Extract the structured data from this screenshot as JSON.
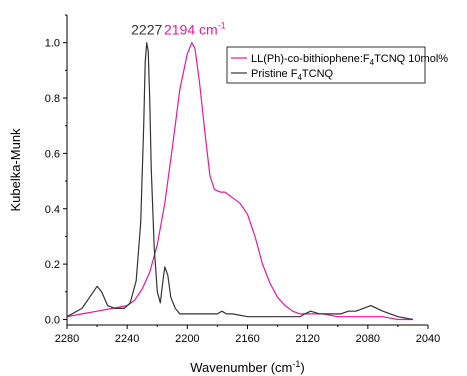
{
  "chart_data": {
    "type": "line",
    "xlabel": "Wavenumber (cm",
    "xlabel_sup": "-1",
    "xlabel_end": ")",
    "ylabel": "Kubelka-Munk",
    "xlim": [
      2280,
      2040
    ],
    "ylim": [
      -0.02,
      1.1
    ],
    "x_ticks": [
      2280,
      2240,
      2200,
      2160,
      2120,
      2080,
      2040
    ],
    "y_ticks": [
      0.0,
      0.2,
      0.4,
      0.6,
      0.8,
      1.0
    ],
    "y_tick_labels": [
      "0.0",
      "0.2",
      "0.4",
      "0.6",
      "0.8",
      "1.0"
    ],
    "legend_position": "top-right",
    "annotations": [
      {
        "text": "2227",
        "sup": "",
        "x": 2227,
        "y": 1.0,
        "color": "#333333"
      },
      {
        "text": "2194 cm",
        "sup": "-1",
        "x": 2195,
        "y": 1.0,
        "color": "#e8189a"
      }
    ],
    "series": [
      {
        "name": "LL(Ph)-co-bithiophene:F",
        "name_sub": "4",
        "name_end": "TCNQ 10mol%",
        "color": "#e8189a",
        "x": [
          2280,
          2270,
          2260,
          2250,
          2240,
          2235,
          2230,
          2225,
          2220,
          2215,
          2210,
          2205,
          2200,
          2197,
          2195,
          2192,
          2188,
          2185,
          2182,
          2178,
          2175,
          2170,
          2165,
          2160,
          2155,
          2150,
          2145,
          2140,
          2135,
          2130,
          2125,
          2120,
          2110,
          2100,
          2090,
          2080,
          2070,
          2060,
          2050
        ],
        "y": [
          0.01,
          0.02,
          0.03,
          0.04,
          0.05,
          0.07,
          0.11,
          0.17,
          0.27,
          0.42,
          0.62,
          0.83,
          0.96,
          1.0,
          0.98,
          0.86,
          0.66,
          0.52,
          0.47,
          0.46,
          0.46,
          0.44,
          0.42,
          0.38,
          0.3,
          0.2,
          0.13,
          0.08,
          0.05,
          0.03,
          0.02,
          0.02,
          0.02,
          0.01,
          0.01,
          0.01,
          0.01,
          0.0,
          0.0
        ]
      },
      {
        "name": "Pristine F",
        "name_sub": "4",
        "name_end": "TCNQ",
        "color": "#333333",
        "x": [
          2280,
          2270,
          2265,
          2260,
          2257,
          2253,
          2248,
          2242,
          2238,
          2234,
          2231,
          2229,
          2228,
          2227,
          2226,
          2225,
          2224,
          2222,
          2220,
          2218,
          2216,
          2215,
          2213,
          2211,
          2208,
          2205,
          2200,
          2195,
          2185,
          2180,
          2177,
          2174,
          2170,
          2160,
          2150,
          2140,
          2130,
          2125,
          2122,
          2118,
          2112,
          2105,
          2098,
          2093,
          2088,
          2083,
          2078,
          2074,
          2070,
          2060,
          2050
        ],
        "y": [
          0.01,
          0.04,
          0.08,
          0.12,
          0.1,
          0.05,
          0.04,
          0.04,
          0.06,
          0.14,
          0.35,
          0.7,
          0.93,
          1.0,
          0.97,
          0.8,
          0.55,
          0.26,
          0.1,
          0.06,
          0.15,
          0.19,
          0.16,
          0.08,
          0.04,
          0.02,
          0.02,
          0.02,
          0.02,
          0.02,
          0.03,
          0.02,
          0.02,
          0.01,
          0.01,
          0.01,
          0.01,
          0.01,
          0.02,
          0.03,
          0.02,
          0.02,
          0.02,
          0.03,
          0.03,
          0.04,
          0.05,
          0.04,
          0.03,
          0.01,
          0.0
        ]
      }
    ]
  }
}
